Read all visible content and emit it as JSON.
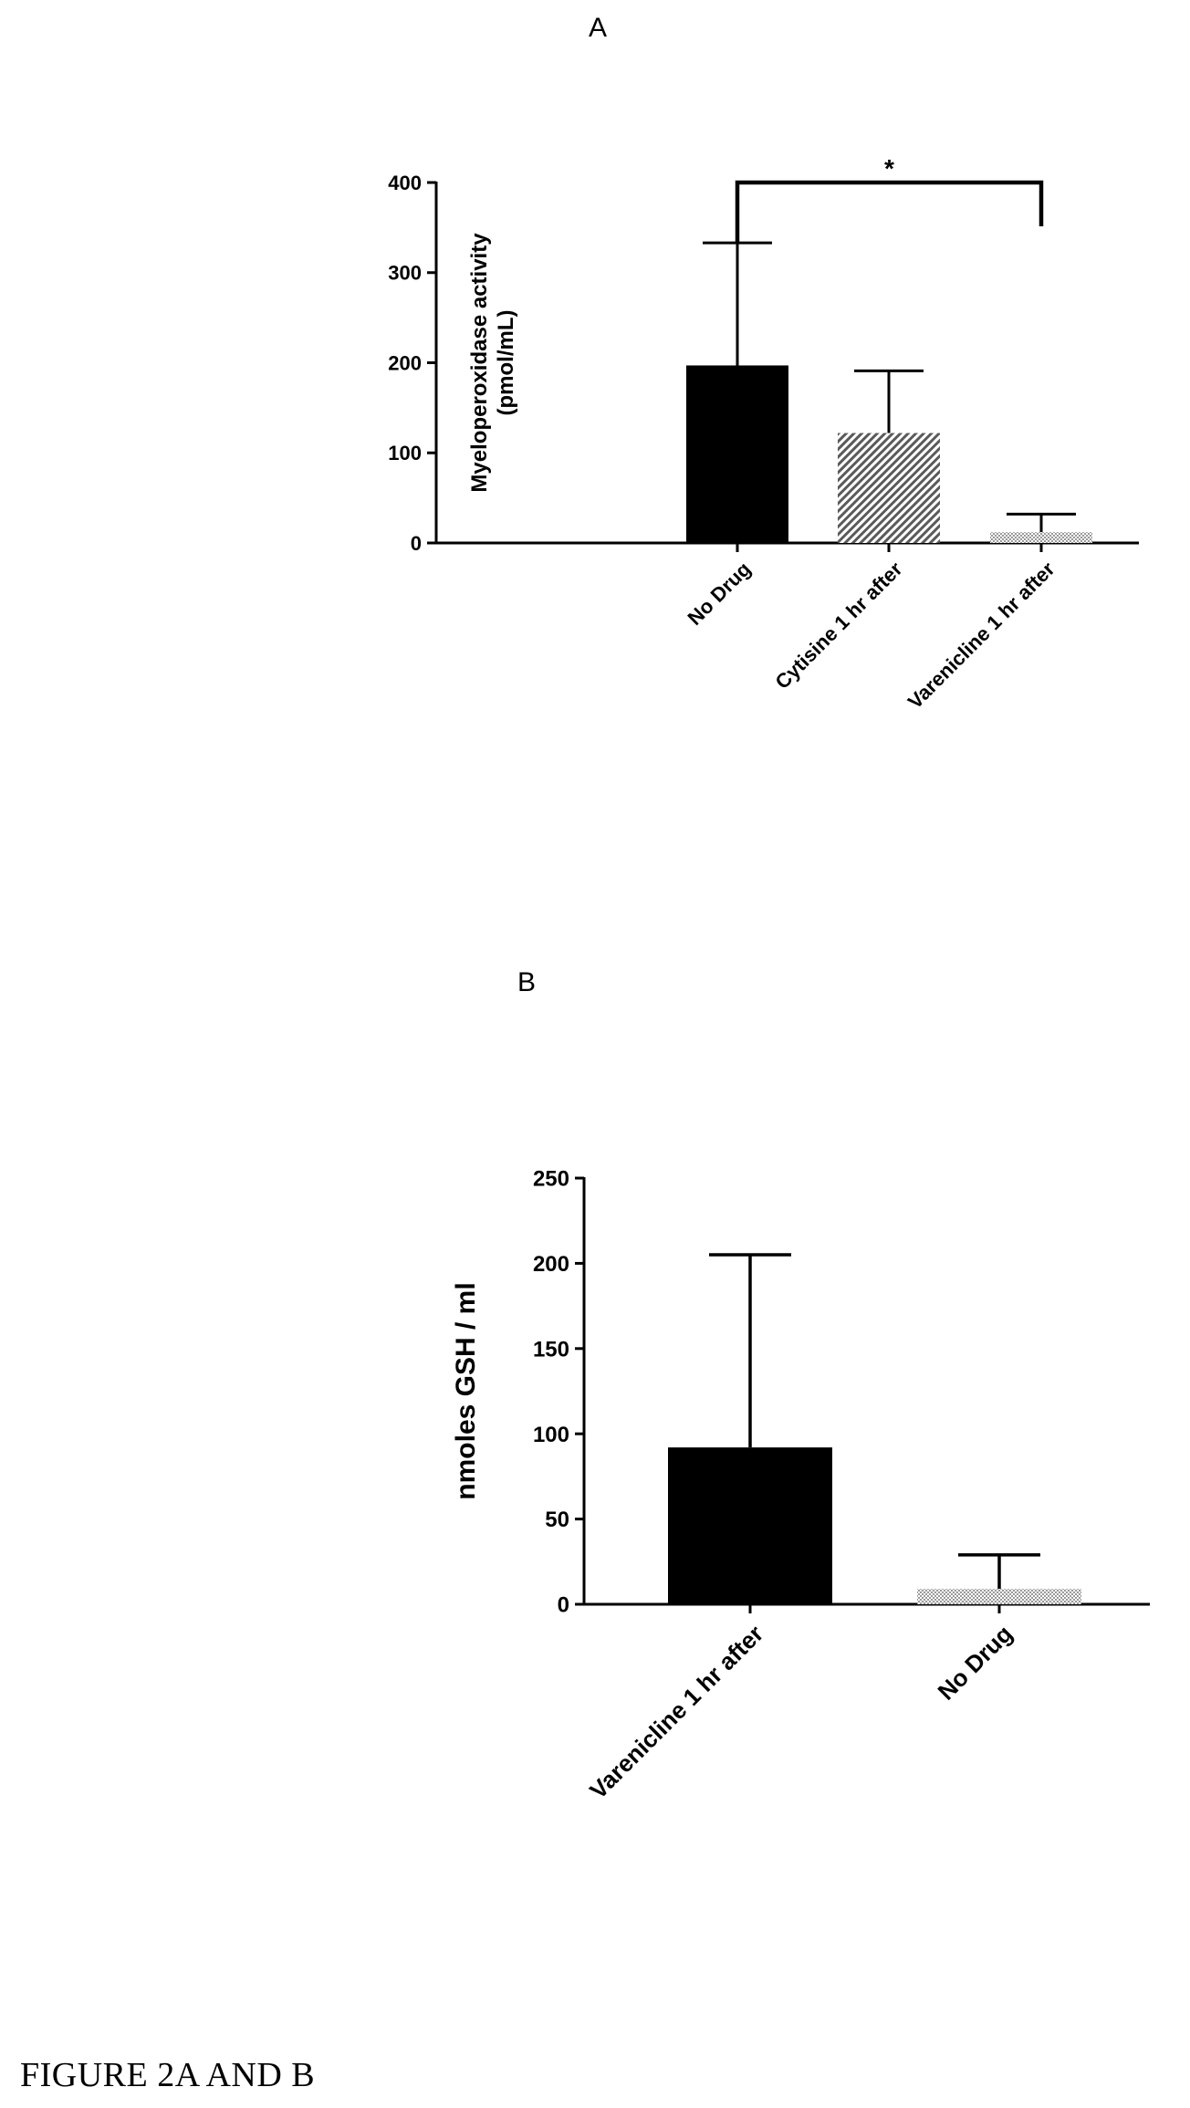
{
  "panels": {
    "a_label": "A",
    "b_label": "B"
  },
  "caption": "FIGURE 2A AND B",
  "colors": {
    "bar_solid": "#000000",
    "pattern_dark": "#5a5a5a",
    "pattern_light": "#9a9a9a",
    "axis": "#000000"
  },
  "chart_data": [
    {
      "type": "bar",
      "panel": "A",
      "categories": [
        "No Drug",
        "Cytisine 1 hr after",
        "Varenicline 1 hr after"
      ],
      "values": [
        197,
        122,
        12
      ],
      "error_upper": [
        333,
        191,
        32
      ],
      "fills": [
        "solid",
        "hatch",
        "dots"
      ],
      "ylabel": "Myeloperoxidase activity",
      "ylabel_unit": "(pmol/mL)",
      "ylim": [
        0,
        400
      ],
      "yticks": [
        "0",
        "100",
        "200",
        "300",
        "400"
      ],
      "significance": {
        "between": [
          0,
          2
        ],
        "label": "*"
      }
    },
    {
      "type": "bar",
      "panel": "B",
      "categories": [
        "Varenicline 1 hr after",
        "No Drug"
      ],
      "values": [
        92,
        9
      ],
      "error_upper": [
        205,
        29
      ],
      "fills": [
        "solid",
        "dots"
      ],
      "ylabel": "nmoles GSH / ml",
      "ylim": [
        0,
        250
      ],
      "yticks": [
        "0",
        "50",
        "100",
        "150",
        "200",
        "250"
      ]
    }
  ]
}
